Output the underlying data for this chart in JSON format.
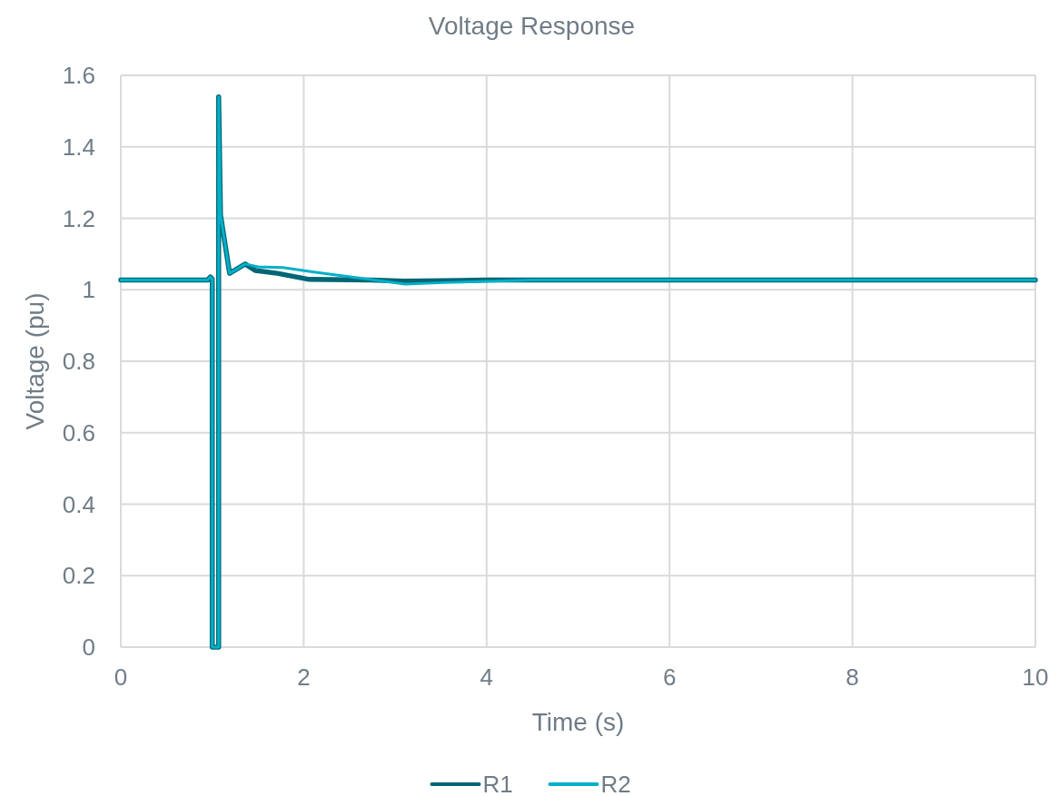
{
  "chart_data": {
    "type": "line",
    "title": "Voltage Response",
    "xlabel": "Time (s)",
    "ylabel": "Voltage (pu)",
    "xlim": [
      0,
      10
    ],
    "xticks": [
      0,
      2,
      4,
      6,
      8,
      10
    ],
    "ylim": [
      0,
      1.6
    ],
    "yticks": [
      0,
      0.2,
      0.4,
      0.6,
      0.8,
      1,
      1.2,
      1.4,
      1.6
    ],
    "grid": true,
    "legend": "bottom",
    "line_style": "solid",
    "series": [
      {
        "name": "R1",
        "color": "#006675",
        "x": [
          0,
          0.95,
          0.98,
          1.0,
          1.0,
          1.07,
          1.07,
          1.09,
          1.19,
          1.36,
          1.47,
          1.71,
          2.06,
          2.73,
          3.1,
          4.0,
          5,
          10
        ],
        "values": [
          1.027,
          1.027,
          1.036,
          1.03,
          0,
          0,
          1.54,
          1.21,
          1.046,
          1.072,
          1.054,
          1.046,
          1.029,
          1.027,
          1.024,
          1.027,
          1.027,
          1.027
        ]
      },
      {
        "name": "R2",
        "color": "#00b0c8",
        "x": [
          0,
          0.95,
          0.98,
          1.0,
          1.0,
          1.07,
          1.07,
          1.09,
          1.19,
          1.36,
          1.5,
          1.77,
          2.13,
          3.11,
          3.53,
          4.5,
          10
        ],
        "values": [
          1.027,
          1.027,
          1.036,
          1.03,
          0,
          0,
          1.54,
          1.21,
          1.046,
          1.072,
          1.064,
          1.062,
          1.049,
          1.016,
          1.02,
          1.027,
          1.027
        ]
      }
    ]
  }
}
